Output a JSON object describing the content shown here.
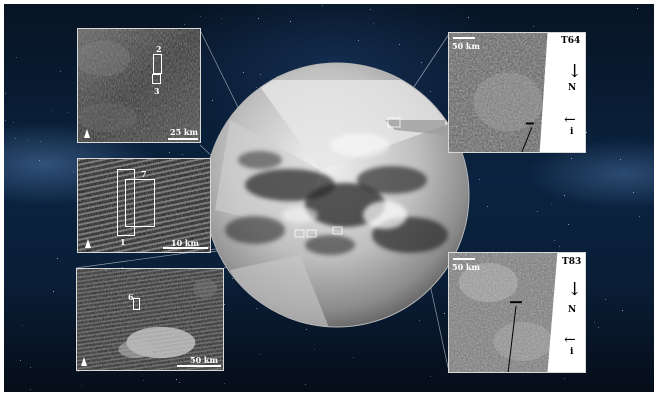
{
  "image": {
    "colors": {
      "space": "#0b2340",
      "panel_border": "#d8d8d8",
      "label_white": "#ffffff",
      "label_black": "#000000"
    }
  },
  "panels": {
    "top_left": {
      "scale_label": "25 km",
      "box_labels": [
        "2",
        "3"
      ],
      "north_icon": "north-arrow-icon"
    },
    "middle_left": {
      "scale_label": "10 km",
      "box_labels": [
        "1",
        "7"
      ],
      "north_icon": "north-arrow-icon"
    },
    "bottom_left": {
      "scale_label": "50 km",
      "box_labels": [
        "6"
      ],
      "north_icon": "north-arrow-icon"
    },
    "top_right": {
      "title": "T64",
      "scale_label": "50 km",
      "north_label": "N",
      "incidence_label": "i"
    },
    "bottom_right": {
      "title": "T83",
      "scale_label": "50 km",
      "north_label": "N",
      "incidence_label": "i"
    }
  }
}
